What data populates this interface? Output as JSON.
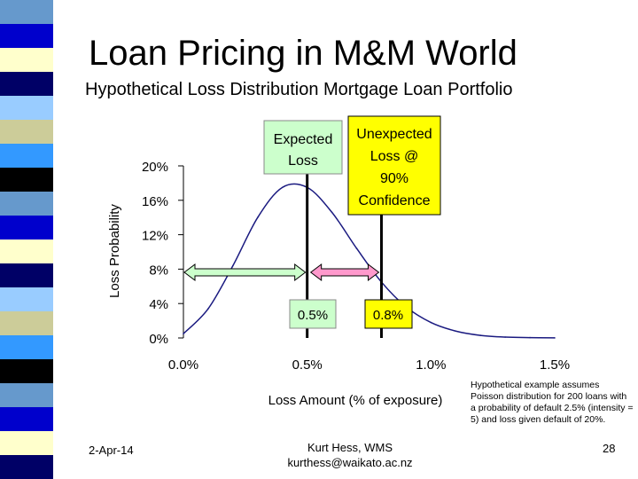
{
  "slide": {
    "title": "Loan Pricing in M&M World",
    "subtitle": "Hypothetical Loss Distribution Mortgage Loan Portfolio",
    "note": "Hypothetical example assumes Poisson distribution for 200 loans with a probability of default 2.5% (intensity = 5) and loss given default of 20%.",
    "footer": {
      "date": "2-Apr-14",
      "author": "Kurt Hess, WMS",
      "email": "kurthess@waikato.ac.nz",
      "page": "28"
    }
  },
  "colors": {
    "curve": "#1a1a80",
    "expected_box": "#ccffcc",
    "unexpected_box": "#ffff00",
    "expected_arrow": "#ccffcc",
    "unexpected_arrow": "#ff99cc",
    "stripe": [
      "#6699cc",
      "#0000cc",
      "#ffffcc",
      "#000066",
      "#99ccff",
      "#cccc99",
      "#3399ff",
      "#000000"
    ]
  },
  "chart_data": {
    "type": "line",
    "title": "",
    "xlabel": "Loss Amount (% of exposure)",
    "ylabel": "Loss Probability",
    "xlim": [
      0,
      0.015
    ],
    "ylim": [
      0,
      0.2
    ],
    "x_ticks": [
      "0.0%",
      "0.5%",
      "1.0%",
      "1.5%"
    ],
    "x_tick_values": [
      0,
      0.005,
      0.01,
      0.015
    ],
    "y_ticks": [
      "0%",
      "4%",
      "8%",
      "12%",
      "16%",
      "20%"
    ],
    "y_tick_values": [
      0,
      0.04,
      0.08,
      0.12,
      0.16,
      0.2
    ],
    "grid": false,
    "series": [
      {
        "x": [
          0,
          0.001,
          0.002,
          0.003,
          0.004,
          0.005,
          0.006,
          0.007,
          0.008,
          0.009,
          0.01,
          0.011,
          0.012,
          0.013,
          0.014,
          0.015
        ],
        "values": [
          0.005,
          0.034,
          0.084,
          0.14,
          0.175,
          0.175,
          0.146,
          0.104,
          0.065,
          0.036,
          0.018,
          0.008,
          0.003,
          0.001,
          0.0004,
          0.0001
        ]
      }
    ],
    "annotations": {
      "expected": {
        "label_line1": "Expected",
        "label_line2": "Loss",
        "x": 0.005,
        "value_label": "0.5%"
      },
      "unexpected": {
        "label_lines": [
          "Unexpected",
          "Loss @",
          "90%",
          "Confidence"
        ],
        "x": 0.008,
        "value_label": "0.8%"
      }
    }
  }
}
